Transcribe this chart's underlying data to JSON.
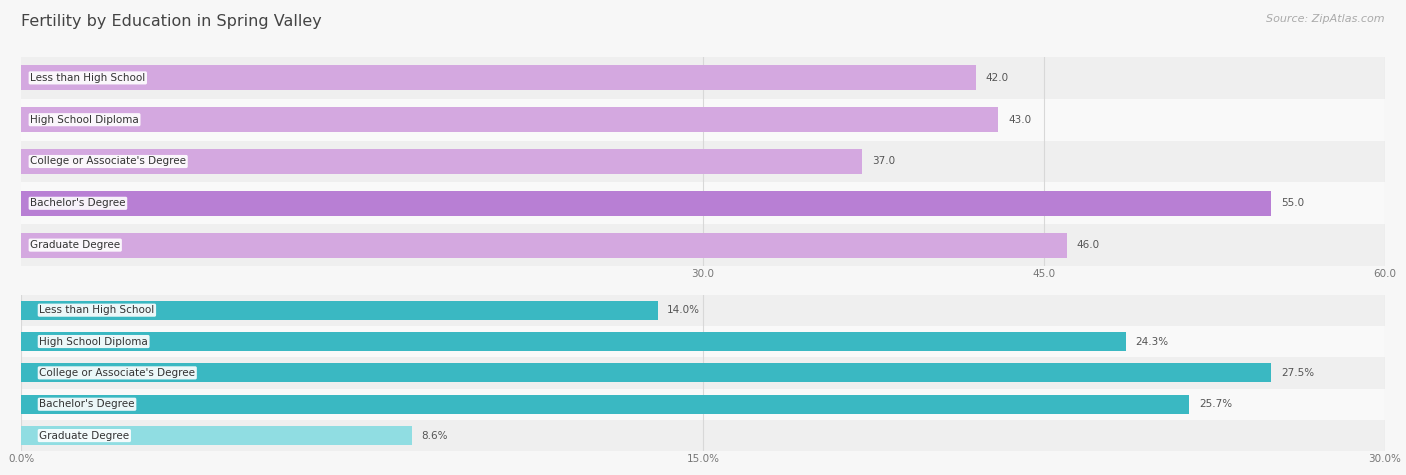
{
  "title": "Fertility by Education in Spring Valley",
  "source_text": "Source: ZipAtlas.com",
  "top_chart": {
    "categories": [
      "Less than High School",
      "High School Diploma",
      "College or Associate's Degree",
      "Bachelor's Degree",
      "Graduate Degree"
    ],
    "values": [
      42.0,
      43.0,
      37.0,
      55.0,
      46.0
    ],
    "labels": [
      "42.0",
      "43.0",
      "37.0",
      "55.0",
      "46.0"
    ],
    "xlim_max": 60.0,
    "xticks": [
      30.0,
      45.0,
      60.0
    ],
    "xtick_labels": [
      "30.0",
      "45.0",
      "60.0"
    ],
    "bar_color": "#d4a8e0",
    "highlight_index": 3,
    "highlight_color": "#b87fd4"
  },
  "bottom_chart": {
    "categories": [
      "Less than High School",
      "High School Diploma",
      "College or Associate's Degree",
      "Bachelor's Degree",
      "Graduate Degree"
    ],
    "values": [
      14.0,
      24.3,
      27.5,
      25.7,
      8.6
    ],
    "labels": [
      "14.0%",
      "24.3%",
      "27.5%",
      "25.7%",
      "8.6%"
    ],
    "xlim_max": 30.0,
    "xticks": [
      0.0,
      15.0,
      30.0
    ],
    "xtick_labels": [
      "0.0%",
      "15.0%",
      "30.0%"
    ],
    "bar_color_dark": "#3ab8c2",
    "bar_color_light": "#90dde2",
    "light_index": 4
  },
  "background_color": "#f7f7f7",
  "row_color_even": "#efefef",
  "row_color_odd": "#f9f9f9",
  "label_bg_color": "#ffffff",
  "value_label_color": "#555555",
  "cat_label_color": "#333333",
  "title_color": "#444444",
  "source_color": "#aaaaaa",
  "grid_color": "#d8d8d8",
  "bar_height": 0.6,
  "title_fontsize": 11.5,
  "cat_label_fontsize": 7.5,
  "value_label_fontsize": 7.5,
  "tick_fontsize": 7.5,
  "source_fontsize": 8
}
